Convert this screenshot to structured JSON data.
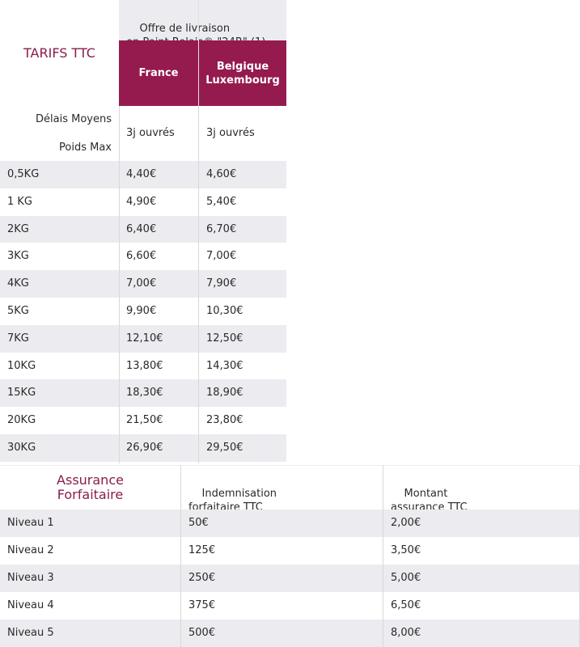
{
  "tarifs": {
    "title": "TARIFS TTC",
    "offer_header": "Offre de livraison\nen Point Relais® \"24R\" (1)",
    "col_france": "France",
    "col_belux": "Belgique\nLuxembourg",
    "delais_label": "Délais Moyens",
    "poids_label": "Poids Max",
    "delais_france": "3j ouvrés",
    "delais_belux": "3j ouvrés",
    "rows": [
      {
        "poids": "0,5KG",
        "france": "4,40€",
        "belux": "4,60€"
      },
      {
        "poids": "1 KG",
        "france": "4,90€",
        "belux": "5,40€"
      },
      {
        "poids": "2KG",
        "france": "6,40€",
        "belux": "6,70€"
      },
      {
        "poids": "3KG",
        "france": "6,60€",
        "belux": "7,00€"
      },
      {
        "poids": "4KG",
        "france": "7,00€",
        "belux": "7,90€"
      },
      {
        "poids": "5KG",
        "france": "9,90€",
        "belux": "10,30€"
      },
      {
        "poids": "7KG",
        "france": "12,10€",
        "belux": "12,50€"
      },
      {
        "poids": "10KG",
        "france": "13,80€",
        "belux": "14,30€"
      },
      {
        "poids": "15KG",
        "france": "18,30€",
        "belux": "18,90€"
      },
      {
        "poids": "20KG",
        "france": "21,50€",
        "belux": "23,80€"
      },
      {
        "poids": "30KG",
        "france": "26,90€",
        "belux": "29,50€"
      }
    ]
  },
  "assurance": {
    "title": "Assurance\nForfaitaire",
    "col_indemn": "Indemnisation\nforfaitaire TTC",
    "col_montant": "Montant\nassurance TTC",
    "rows": [
      {
        "niveau": "Niveau 1",
        "indemn": "50€",
        "montant": "2,00€"
      },
      {
        "niveau": "Niveau 2",
        "indemn": "125€",
        "montant": "3,50€"
      },
      {
        "niveau": "Niveau 3",
        "indemn": "250€",
        "montant": "5,00€"
      },
      {
        "niveau": "Niveau 4",
        "indemn": "375€",
        "montant": "6,50€"
      },
      {
        "niveau": "Niveau 5",
        "indemn": "500€",
        "montant": "8,00€"
      }
    ]
  },
  "colors": {
    "accent": "#951b4e",
    "title": "#8a1c4b",
    "row_gray": "#ececf0"
  }
}
